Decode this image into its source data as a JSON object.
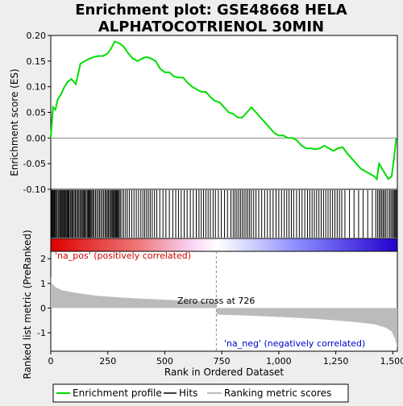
{
  "chart_data": {
    "type": "line",
    "title_lines": [
      "Enrichment plot: GSE48668 HELA",
      "ALPHATOCOTRIENOL 30MIN"
    ],
    "xlabel": "Rank in Ordered Dataset",
    "ylabel_top": "Enrichment score (ES)",
    "ylabel_bottom": "Ranked list metric (PreRanked)",
    "x_range": [
      0,
      1520
    ],
    "x_ticks": [
      0,
      250,
      500,
      750,
      1000,
      1250,
      1500
    ],
    "x_tick_labels": [
      "0",
      "250",
      "500",
      "750",
      "1,000",
      "1,250",
      "1,500"
    ],
    "es_ylim": [
      -0.1,
      0.2
    ],
    "es_ticks": [
      -0.1,
      -0.05,
      0.0,
      0.05,
      0.1,
      0.15,
      0.2
    ],
    "es_tick_labels": [
      "-0.10",
      "-0.05",
      "0.00",
      "0.05",
      "0.10",
      "0.15",
      "0.20"
    ],
    "metric_ylim": [
      -1.75,
      2.3
    ],
    "metric_ticks": [
      -1,
      0,
      1,
      2
    ],
    "metric_tick_labels": [
      "-1",
      "0",
      "1",
      "2"
    ],
    "zero_cross_rank": 726,
    "zero_cross_label": "Zero cross at 726",
    "pos_label": "'na_pos' (positively correlated)",
    "neg_label": "'na_neg' (negatively correlated)",
    "series": [
      {
        "name": "Enrichment profile",
        "x": [
          0,
          10,
          20,
          30,
          45,
          60,
          75,
          90,
          110,
          130,
          150,
          170,
          190,
          210,
          230,
          250,
          265,
          280,
          300,
          320,
          340,
          360,
          380,
          400,
          420,
          440,
          460,
          480,
          500,
          520,
          540,
          560,
          580,
          600,
          620,
          640,
          660,
          680,
          700,
          720,
          740,
          760,
          780,
          800,
          820,
          840,
          860,
          880,
          900,
          920,
          940,
          960,
          980,
          1000,
          1020,
          1040,
          1060,
          1080,
          1100,
          1120,
          1140,
          1160,
          1180,
          1200,
          1220,
          1240,
          1260,
          1280,
          1300,
          1320,
          1340,
          1360,
          1380,
          1400,
          1420,
          1430,
          1440,
          1460,
          1480,
          1495,
          1505,
          1510,
          1515
        ],
        "values": [
          0.0,
          0.06,
          0.055,
          0.075,
          0.085,
          0.1,
          0.11,
          0.115,
          0.105,
          0.145,
          0.15,
          0.155,
          0.158,
          0.16,
          0.16,
          0.165,
          0.175,
          0.188,
          0.185,
          0.178,
          0.165,
          0.155,
          0.15,
          0.155,
          0.158,
          0.155,
          0.15,
          0.135,
          0.128,
          0.128,
          0.12,
          0.118,
          0.118,
          0.108,
          0.1,
          0.095,
          0.09,
          0.09,
          0.08,
          0.072,
          0.07,
          0.06,
          0.05,
          0.047,
          0.04,
          0.04,
          0.05,
          0.06,
          0.05,
          0.04,
          0.03,
          0.02,
          0.01,
          0.005,
          0.005,
          0.0,
          0.0,
          -0.005,
          -0.015,
          -0.02,
          -0.02,
          -0.022,
          -0.02,
          -0.015,
          -0.02,
          -0.025,
          -0.02,
          -0.018,
          -0.03,
          -0.04,
          -0.05,
          -0.06,
          -0.065,
          -0.07,
          -0.075,
          -0.08,
          -0.05,
          -0.065,
          -0.08,
          -0.075,
          -0.04,
          -0.02,
          0.0
        ]
      },
      {
        "name": "Hits"
      },
      {
        "name": "Ranking metric scores"
      }
    ],
    "hit_ranks": [
      3,
      6,
      9,
      12,
      16,
      20,
      24,
      28,
      33,
      38,
      42,
      45,
      49,
      53,
      57,
      61,
      64,
      68,
      72,
      76,
      80,
      85,
      89,
      94,
      98,
      103,
      108,
      113,
      118,
      123,
      128,
      133,
      138,
      142,
      146,
      150,
      155,
      160,
      164,
      168,
      172,
      176,
      180,
      185,
      190,
      196,
      202,
      208,
      214,
      220,
      226,
      232,
      238,
      243,
      248,
      253,
      258,
      263,
      268,
      272,
      276,
      280,
      284,
      288,
      292,
      296,
      300,
      305,
      312,
      320,
      328,
      336,
      345,
      355,
      365,
      375,
      385,
      395,
      404,
      412,
      420,
      428,
      436,
      445,
      455,
      465,
      478,
      492,
      505,
      520,
      535,
      548,
      560,
      572,
      585,
      598,
      612,
      625,
      638,
      650,
      660,
      670,
      680,
      690,
      700,
      712,
      722,
      735,
      748,
      762,
      775,
      790,
      800,
      808,
      816,
      824,
      832,
      840,
      848,
      856,
      864,
      872,
      880,
      890,
      900,
      912,
      925,
      938,
      950,
      962,
      975,
      988,
      1000,
      1012,
      1024,
      1035,
      1045,
      1055,
      1065,
      1078,
      1090,
      1102,
      1114,
      1126,
      1136,
      1146,
      1156,
      1166,
      1176,
      1186,
      1196,
      1206,
      1216,
      1226,
      1236,
      1246,
      1256,
      1266,
      1276,
      1290,
      1310,
      1330,
      1350,
      1370,
      1390,
      1410,
      1425,
      1433,
      1440,
      1446,
      1452,
      1458,
      1464,
      1470,
      1478,
      1486,
      1492,
      1498,
      1503,
      1508,
      1512,
      1516
    ],
    "metric_curve": {
      "x": [
        0,
        5,
        20,
        50,
        100,
        200,
        300,
        400,
        500,
        600,
        700,
        726,
        727,
        750,
        850,
        950,
        1050,
        1150,
        1250,
        1350,
        1420,
        1470,
        1495,
        1510,
        1520
      ],
      "values": [
        1.3,
        1.0,
        0.85,
        0.72,
        0.63,
        0.5,
        0.43,
        0.38,
        0.34,
        0.3,
        0.26,
        0.24,
        -0.26,
        -0.27,
        -0.3,
        -0.34,
        -0.38,
        -0.43,
        -0.5,
        -0.58,
        -0.66,
        -0.8,
        -0.95,
        -1.25,
        -1.6
      ]
    },
    "legend_position": "bottom",
    "colors": {
      "es_line": "#00dd00",
      "hits": "#000000",
      "metric_fill": "#bbbbbb",
      "zero_line": "#888888",
      "pos_text": "#cc0000",
      "neg_text": "#0000cc",
      "bar_red": "#dd0000",
      "bar_white": "#ffffff",
      "bar_blue": "#2200cc"
    }
  },
  "legend": {
    "items": [
      {
        "label": "Enrichment profile",
        "color": "#00dd00"
      },
      {
        "label": "Hits",
        "color": "#000000"
      },
      {
        "label": "Ranking metric scores",
        "color": "#bbbbbb"
      }
    ]
  }
}
